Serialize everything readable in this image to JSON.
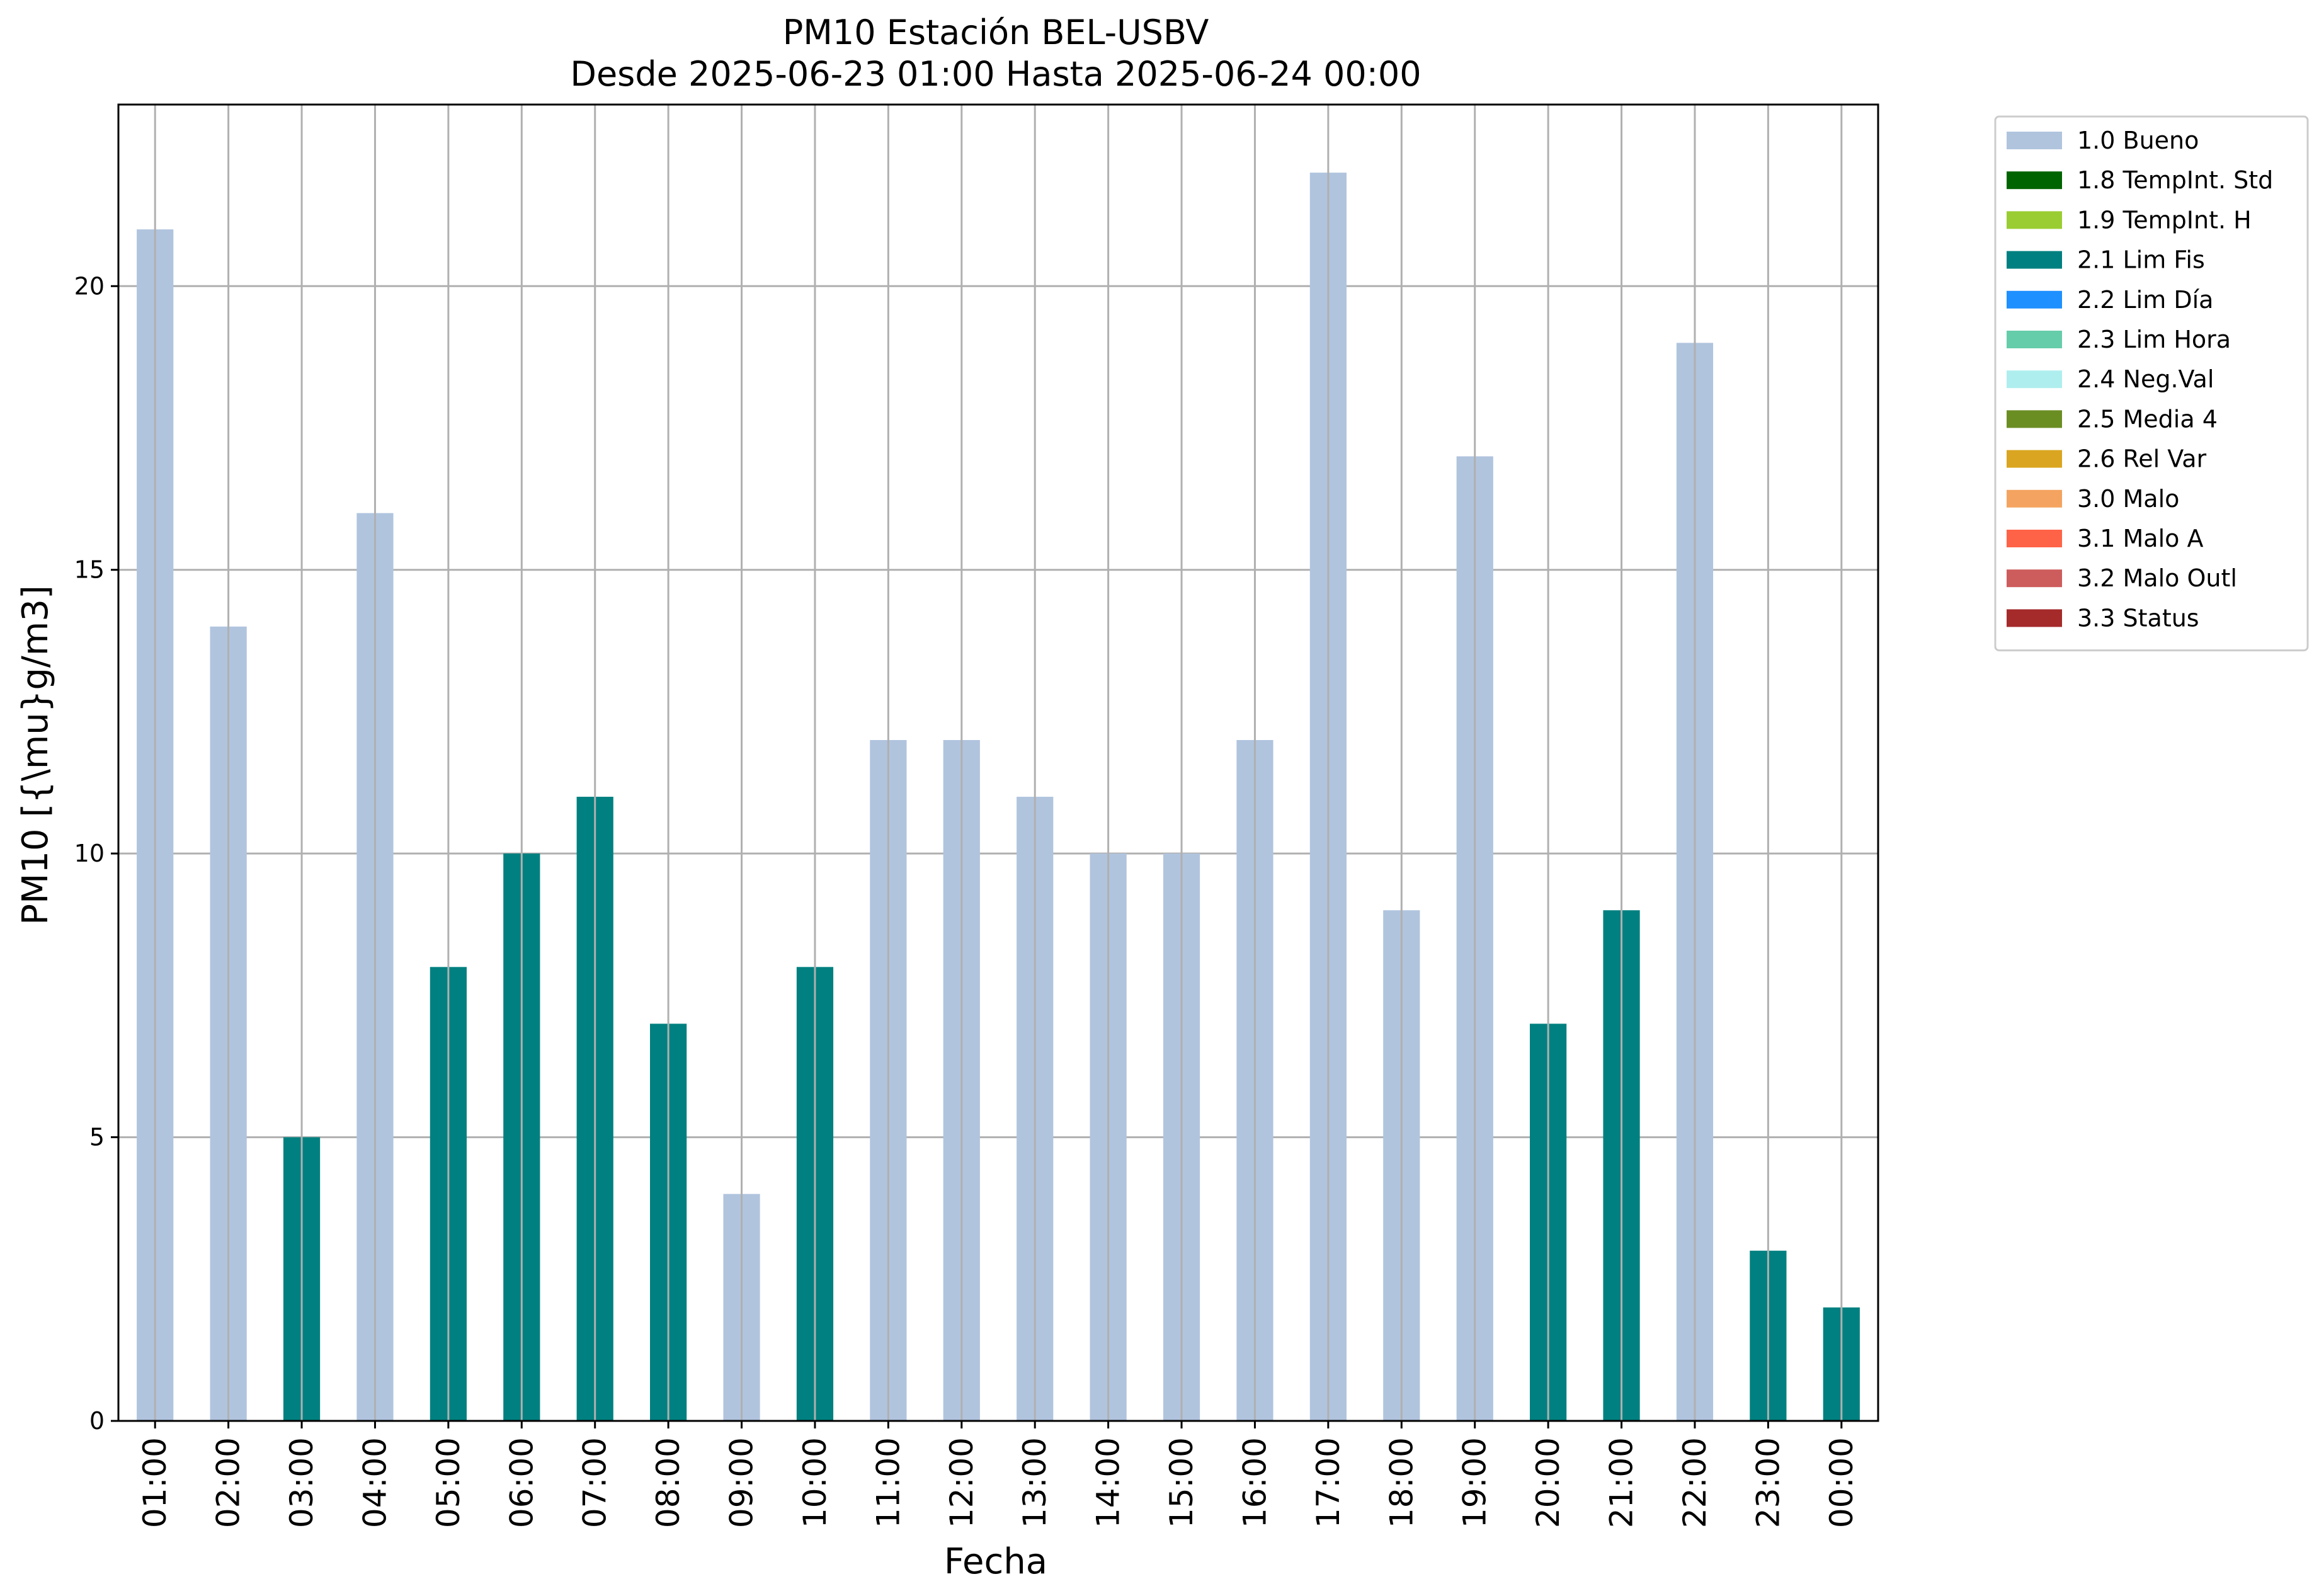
{
  "chart_data": {
    "type": "bar",
    "title": "PM10 Estación BEL-USBV",
    "subtitle": "Desde 2025-06-23 01:00 Hasta 2025-06-24 00:00",
    "xlabel": "Fecha",
    "ylabel": "PM10 [{\\mu}g/m3]",
    "ylim": [
      0,
      23.2
    ],
    "yticks": [
      0,
      5,
      10,
      15,
      20
    ],
    "grid": true,
    "legend_position": "outside-right",
    "categories": [
      "01:00",
      "02:00",
      "03:00",
      "04:00",
      "05:00",
      "06:00",
      "07:00",
      "08:00",
      "09:00",
      "10:00",
      "11:00",
      "12:00",
      "13:00",
      "14:00",
      "15:00",
      "16:00",
      "17:00",
      "18:00",
      "19:00",
      "20:00",
      "21:00",
      "22:00",
      "23:00",
      "00:00"
    ],
    "values": [
      21,
      14,
      5,
      16,
      8,
      10,
      11,
      7,
      4,
      8,
      12,
      12,
      11,
      10,
      10,
      12,
      22,
      9,
      17,
      7,
      9,
      19,
      3,
      2
    ],
    "flags": [
      "1.0 Bueno",
      "1.0 Bueno",
      "2.1 Lim Fis",
      "1.0 Bueno",
      "2.1 Lim Fis",
      "2.1 Lim Fis",
      "2.1 Lim Fis",
      "2.1 Lim Fis",
      "1.0 Bueno",
      "2.1 Lim Fis",
      "1.0 Bueno",
      "1.0 Bueno",
      "1.0 Bueno",
      "1.0 Bueno",
      "1.0 Bueno",
      "1.0 Bueno",
      "1.0 Bueno",
      "1.0 Bueno",
      "1.0 Bueno",
      "2.1 Lim Fis",
      "2.1 Lim Fis",
      "1.0 Bueno",
      "2.1 Lim Fis",
      "2.1 Lim Fis"
    ],
    "legend": [
      {
        "label": "1.0 Bueno",
        "color": "#b0c4de"
      },
      {
        "label": "1.8 TempInt. Std",
        "color": "#006400"
      },
      {
        "label": "1.9 TempInt. H",
        "color": "#9acd32"
      },
      {
        "label": "2.1 Lim Fis",
        "color": "#008080"
      },
      {
        "label": "2.2 Lim Día",
        "color": "#1e90ff"
      },
      {
        "label": "2.3 Lim Hora",
        "color": "#66cdaa"
      },
      {
        "label": "2.4 Neg.Val",
        "color": "#afeeee"
      },
      {
        "label": "2.5 Media 4",
        "color": "#6b8e23"
      },
      {
        "label": "2.6 Rel Var",
        "color": "#daa520"
      },
      {
        "label": "3.0 Malo",
        "color": "#f4a460"
      },
      {
        "label": "3.1 Malo A",
        "color": "#ff6347"
      },
      {
        "label": "3.2 Malo Outl",
        "color": "#cd5c5c"
      },
      {
        "label": "3.3 Status",
        "color": "#a52a2a"
      }
    ]
  }
}
